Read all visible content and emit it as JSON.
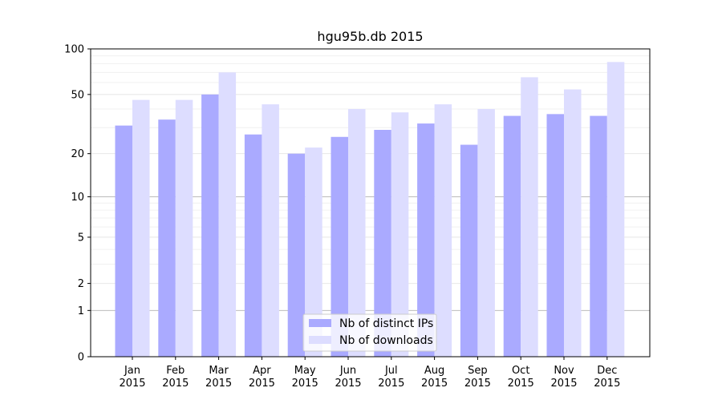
{
  "chart_data": {
    "type": "bar",
    "title": "hgu95b.db 2015",
    "xlabel": "",
    "ylabel": "",
    "yscale": "log(1+y)",
    "ylim": [
      0,
      100
    ],
    "yticks": [
      0,
      1,
      2,
      5,
      10,
      20,
      50,
      100
    ],
    "categories": [
      "Jan\n2015",
      "Feb\n2015",
      "Mar\n2015",
      "Apr\n2015",
      "May\n2015",
      "Jun\n2015",
      "Jul\n2015",
      "Aug\n2015",
      "Sep\n2015",
      "Oct\n2015",
      "Nov\n2015",
      "Dec\n2015"
    ],
    "series": [
      {
        "name": "Nb of distinct IPs",
        "color": "#aaaaff",
        "values": [
          31,
          34,
          50,
          27,
          20,
          26,
          29,
          32,
          23,
          36,
          37,
          36
        ]
      },
      {
        "name": "Nb of downloads",
        "color": "#ddddff",
        "values": [
          46,
          46,
          70,
          43,
          22,
          40,
          38,
          43,
          40,
          65,
          54,
          82
        ]
      }
    ],
    "legend_position": "bottom-center",
    "grid": "horizontal"
  }
}
